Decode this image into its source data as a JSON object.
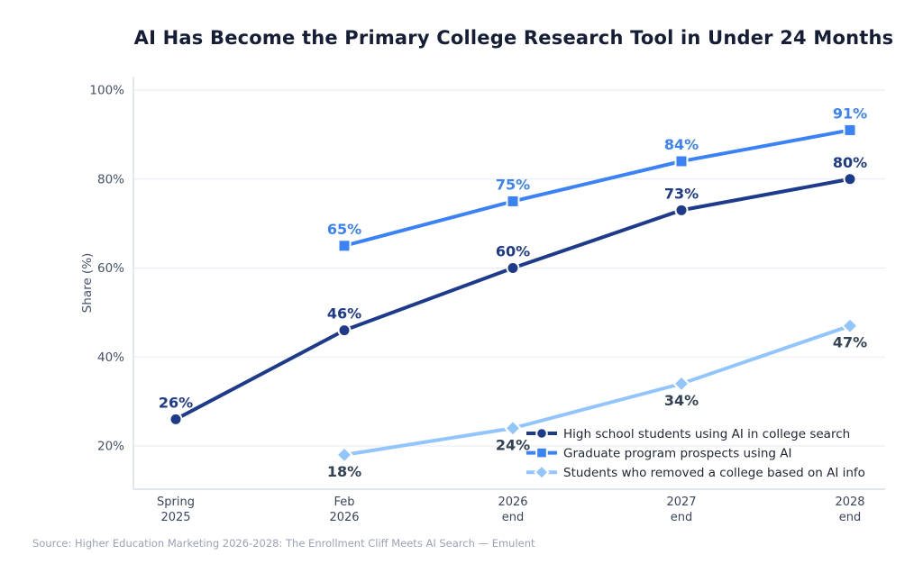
{
  "source": "Source: Higher Education Marketing 2026-2028: The Enrollment Cliff Meets AI Search — Emulent",
  "colors": {
    "background": "#ffffff",
    "title_text": "#151e36",
    "axis_tick_text": "#45506b",
    "x_tick_text": "#3a455f",
    "gridline": "#e6eaf2",
    "spine": "#cfd7e4",
    "legend_text": "#1f2633",
    "source_text": "#98a2b8"
  },
  "chart_data": {
    "type": "line",
    "title": "AI Has Become the Primary College Research Tool in Under 24 Months",
    "xlabel": "",
    "ylabel": "Share (%)",
    "x_tick_labels": [
      [
        "Spring",
        "2025"
      ],
      [
        "Feb",
        "2026"
      ],
      [
        "2026",
        "end"
      ],
      [
        "2027",
        "end"
      ],
      [
        "2028",
        "end"
      ]
    ],
    "y_ticks": [
      20,
      40,
      60,
      80,
      100
    ],
    "y_tick_suffix": "%",
    "ylim": [
      10.3,
      103
    ],
    "grid": true,
    "legend_position": "lower right",
    "series": [
      {
        "name": "High school students using AI in college search",
        "marker": "circle",
        "color": "#1e3a8a",
        "label_color": "#1e3a8a",
        "label_position": "above",
        "values": [
          26,
          46,
          60,
          73,
          80
        ]
      },
      {
        "name": "Graduate program prospects using AI",
        "marker": "square",
        "color": "#3b82f6",
        "label_color": "#3b82f6",
        "label_position": "above",
        "values": [
          null,
          65,
          75,
          84,
          91
        ]
      },
      {
        "name": "Students who removed a college based on AI info",
        "marker": "diamond",
        "color": "#93c5fd",
        "label_color": "#334155",
        "label_position": "below",
        "values": [
          null,
          18,
          24,
          34,
          47
        ]
      }
    ]
  }
}
